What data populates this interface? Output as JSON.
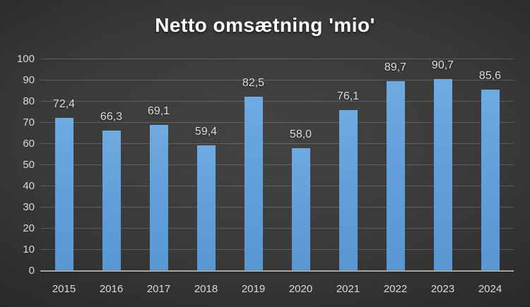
{
  "chart_data": {
    "type": "bar",
    "title": "Netto omsætning 'mio'",
    "categories": [
      "2015",
      "2016",
      "2017",
      "2018",
      "2019",
      "2020",
      "2021",
      "2022",
      "2023",
      "2024"
    ],
    "values": [
      72.4,
      66.3,
      69.1,
      59.4,
      82.5,
      58.0,
      76.1,
      89.7,
      90.7,
      85.6
    ],
    "value_labels": [
      "72,4",
      "66,3",
      "69,1",
      "59,4",
      "82,5",
      "58,0",
      "76,1",
      "89,7",
      "90,7",
      "85,6"
    ],
    "y_ticks": [
      "100",
      "90",
      "80",
      "70",
      "60",
      "50",
      "40",
      "30",
      "20",
      "10",
      "0"
    ],
    "ylim": [
      0,
      100
    ],
    "xlabel": "",
    "ylabel": "",
    "grid": true,
    "legend": false,
    "decimal_separator": ",",
    "colors": {
      "bar_top": "#6FAAE1",
      "bar_bottom": "#5897D2",
      "background_center": "#434343",
      "background_edge": "#242424",
      "gridline": "rgba(217,217,217,0.22)",
      "axis_line": "#A6A6A6",
      "tick_label": "#D9D9D9",
      "data_label": "#DCDCDC",
      "title": "#FFFFFF"
    }
  }
}
